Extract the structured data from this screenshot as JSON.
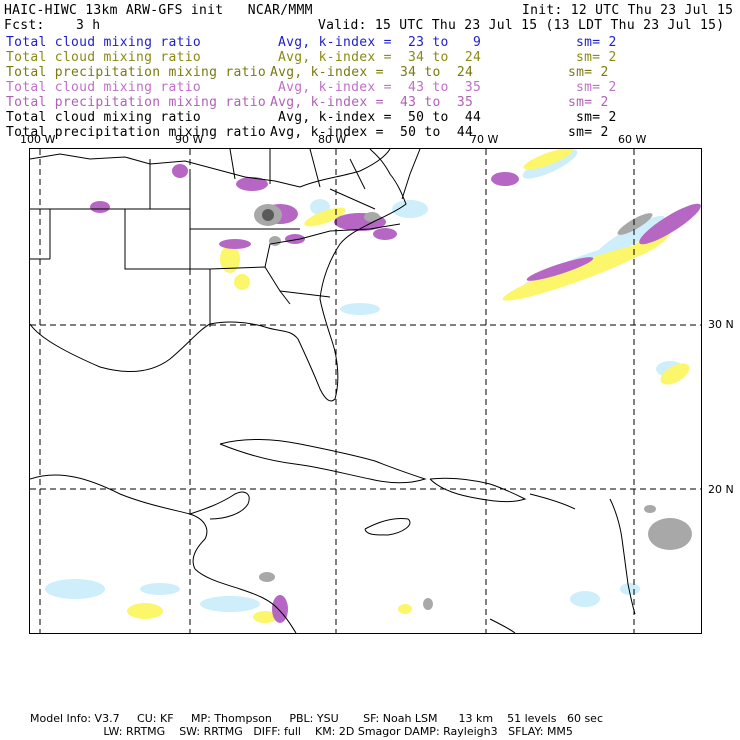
{
  "header": {
    "title": "HAIC-HIWC 13km ARW-GFS init   NCAR/MMM",
    "init": "Init: 12 UTC Thu 23 Jul 15",
    "fcst_label": "Fcst:",
    "fcst_value": "3 h",
    "valid": "Valid: 15 UTC Thu 23 Jul 15 (13 LDT Thu 23 Jul 15)"
  },
  "legend": [
    {
      "name": "Total cloud mixing ratio",
      "avg": "Avg, k-index =  23 to   9",
      "sm": "sm= 2",
      "color": "#1e1ecb"
    },
    {
      "name": "Total cloud mixing ratio",
      "avg": "Avg, k-index =  34 to  24",
      "sm": "sm= 2",
      "color": "#8a8a14"
    },
    {
      "name": "Total precipitation mixing ratio",
      "avg": "Avg, k-index =  34 to  24",
      "sm": "sm= 2",
      "color": "#7a7a10"
    },
    {
      "name": "Total cloud mixing ratio",
      "avg": "Avg, k-index =  43 to  35",
      "sm": "sm= 2",
      "color": "#c070c8"
    },
    {
      "name": "Total precipitation mixing ratio",
      "avg": "Avg, k-index =  43 to  35",
      "sm": "sm= 2",
      "color": "#b060b8"
    },
    {
      "name": "Total cloud mixing ratio",
      "avg": "Avg, k-index =  50 to  44",
      "sm": "sm= 2",
      "color": "#000000"
    },
    {
      "name": "Total precipitation mixing ratio",
      "avg": "Avg, k-index =  50 to  44",
      "sm": "sm= 2",
      "color": "#000000"
    }
  ],
  "map": {
    "lon_labels": [
      "100 W",
      "90 W",
      "80 W",
      "70 W",
      "60 W"
    ],
    "lat_labels": [
      "30 N",
      "20 N"
    ],
    "colors": {
      "cyan": "#cdeefa",
      "yellow": "#fbf66a",
      "purple": "#b667c4",
      "gray": "#a8a8a8",
      "darkgray": "#5a5a5a"
    }
  },
  "footer": {
    "line1": "Model Info: V3.7     CU: KF     MP: Thompson     PBL: YSU       SF: Noah LSM      13 km    51 levels   60 sec",
    "line2": "                     LW: RRTMG    SW: RRTMG   DIFF: full    KM: 2D Smagor DAMP: Rayleigh3   SFLAY: MM5"
  }
}
